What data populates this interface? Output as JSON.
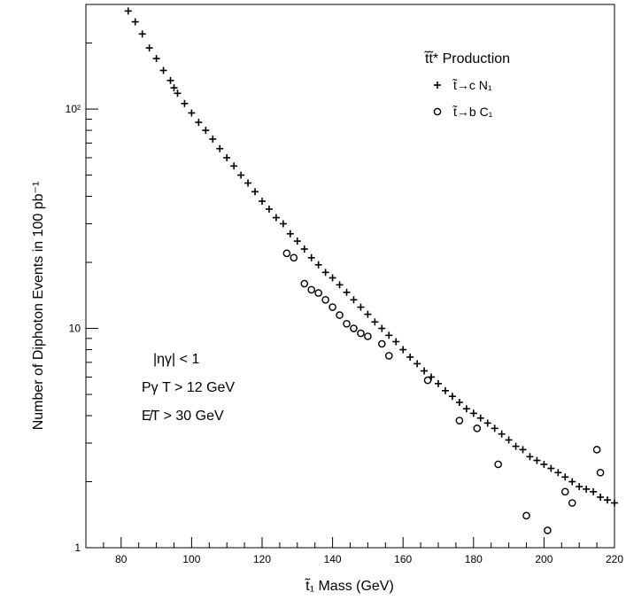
{
  "chart_data": {
    "type": "scatter",
    "xlabel": "t̃₁ Mass (GeV)",
    "ylabel": "Number of Diphoton Events in 100 pb⁻¹",
    "xlim": [
      70,
      220
    ],
    "ylim": [
      1,
      300
    ],
    "yscale": "log",
    "x_ticks": [
      "80",
      "100",
      "120",
      "140",
      "160",
      "180",
      "200",
      "220"
    ],
    "y_ticks": [
      "1",
      "10",
      "10²"
    ],
    "grid": false,
    "legend_title": "t̃t̃* Production",
    "legend_position": "top-right",
    "annotations": [
      "|ηγ| < 1",
      "Pγ T > 12 GeV",
      "E̸T > 30 GeV"
    ],
    "series": [
      {
        "name": "t̃→c N₁",
        "marker": "plus",
        "x": [
          82,
          84,
          86,
          88,
          90,
          92,
          94,
          95,
          96,
          98,
          100,
          102,
          104,
          106,
          108,
          110,
          112,
          114,
          116,
          118,
          120,
          122,
          124,
          126,
          128,
          130,
          132,
          134,
          136,
          138,
          140,
          142,
          144,
          146,
          148,
          150,
          152,
          154,
          156,
          158,
          160,
          162,
          164,
          166,
          168,
          170,
          172,
          174,
          176,
          178,
          180,
          182,
          184,
          186,
          188,
          190,
          192,
          194,
          196,
          198,
          200,
          202,
          204,
          206,
          208,
          210,
          212,
          214,
          216,
          218,
          220
        ],
        "y": [
          280,
          250,
          220,
          190,
          170,
          150,
          135,
          125,
          118,
          106,
          96,
          87,
          80,
          73,
          66,
          60,
          55,
          50,
          46,
          42,
          38,
          35,
          32,
          30,
          27,
          25,
          23,
          21,
          19.5,
          18,
          17,
          15.8,
          14.6,
          13.5,
          12.5,
          11.6,
          10.7,
          10,
          9.3,
          8.7,
          8,
          7.4,
          6.9,
          6.4,
          6,
          5.6,
          5.2,
          4.9,
          4.6,
          4.3,
          4.1,
          3.9,
          3.7,
          3.5,
          3.3,
          3.1,
          2.9,
          2.8,
          2.6,
          2.5,
          2.4,
          2.3,
          2.2,
          2.1,
          2.0,
          1.9,
          1.85,
          1.8,
          1.7,
          1.65,
          1.6
        ]
      },
      {
        "name": "t̃→b C₁",
        "marker": "open-circle",
        "x": [
          127,
          129,
          132,
          134,
          136,
          138,
          140,
          142,
          144,
          146,
          148,
          150,
          154,
          156,
          167,
          176,
          181,
          187,
          195,
          201,
          206,
          208,
          215,
          216
        ],
        "y": [
          22,
          21,
          16,
          15,
          14.5,
          13.5,
          12.5,
          11.5,
          10.5,
          10,
          9.5,
          9.2,
          8.5,
          7.5,
          5.8,
          3.8,
          3.5,
          2.4,
          1.4,
          1.2,
          1.8,
          1.6,
          2.8,
          2.2
        ]
      }
    ]
  }
}
